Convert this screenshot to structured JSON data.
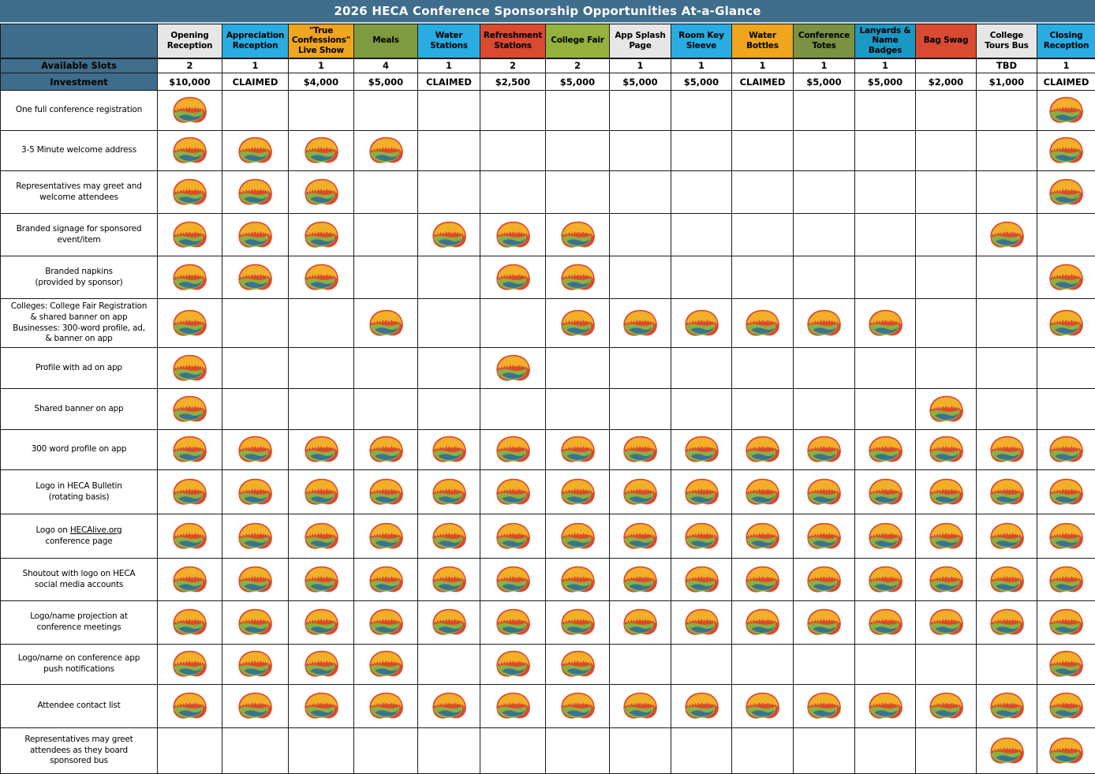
{
  "title": "2026 HECA Conference Sponsorship Opportunities At-a-Glance",
  "colors": {
    "title_bar": "#3F6D8C",
    "header_label_bg": "#3F6D8C",
    "grid_border": "#1a1a1a",
    "gray": "#E6E6E6",
    "cyan": "#29ACE2",
    "amber": "#F0A51E",
    "olive": "#7E9B3F",
    "red": "#D94A31",
    "yellow_green": "#96B23C",
    "dark_olive": "#7A9242",
    "teal": "#1A99C5"
  },
  "icon": {
    "name": "heca-logo-mark",
    "colors": {
      "base": "#DC4A2E",
      "dome": "#F2AF29",
      "swoosh": "#8BB03F",
      "wave": "#3A7391"
    }
  },
  "row_headers": {
    "available_slots": "Available Slots",
    "investment": "Investment"
  },
  "columns": [
    {
      "label": "Opening Reception",
      "color_key": "gray",
      "slots": "2",
      "investment": "$10,000"
    },
    {
      "label": "Appreciation Reception",
      "color_key": "cyan",
      "slots": "1",
      "investment": "CLAIMED"
    },
    {
      "label": "\"True Confessions\" Live Show",
      "color_key": "amber",
      "slots": "1",
      "investment": "$4,000"
    },
    {
      "label": "Meals",
      "color_key": "olive",
      "slots": "4",
      "investment": "$5,000"
    },
    {
      "label": "Water Stations",
      "color_key": "cyan",
      "slots": "1",
      "investment": "CLAIMED"
    },
    {
      "label": "Refreshment Stations",
      "color_key": "red",
      "slots": "2",
      "investment": "$2,500"
    },
    {
      "label": "College Fair",
      "color_key": "yellow_green",
      "slots": "2",
      "investment": "$5,000"
    },
    {
      "label": "App Splash Page",
      "color_key": "gray",
      "slots": "1",
      "investment": "$5,000"
    },
    {
      "label": "Room Key Sleeve",
      "color_key": "cyan",
      "slots": "1",
      "investment": "$5,000"
    },
    {
      "label": "Water Bottles",
      "color_key": "amber",
      "slots": "1",
      "investment": "CLAIMED"
    },
    {
      "label": "Conference Totes",
      "color_key": "dark_olive",
      "slots": "1",
      "investment": "$5,000"
    },
    {
      "label": "Lanyards & Name Badges",
      "color_key": "teal",
      "slots": "1",
      "investment": "$5,000"
    },
    {
      "label": "Bag Swag",
      "color_key": "red",
      "slots": "",
      "investment": "$2,000"
    },
    {
      "label": "College Tours Bus",
      "color_key": "gray",
      "slots": "TBD",
      "investment": "$1,000"
    },
    {
      "label": "Closing Reception",
      "color_key": "cyan",
      "slots": "1",
      "investment": "CLAIMED"
    }
  ],
  "benefits": [
    {
      "label": "One full conference registration",
      "cells": [
        1,
        0,
        0,
        0,
        0,
        0,
        0,
        0,
        0,
        0,
        0,
        0,
        0,
        0,
        1
      ]
    },
    {
      "label": "3-5 Minute welcome address",
      "cells": [
        1,
        1,
        1,
        1,
        0,
        0,
        0,
        0,
        0,
        0,
        0,
        0,
        0,
        0,
        1
      ]
    },
    {
      "label": "Representatives may greet and welcome attendees",
      "lines": [
        "Representatives may greet and",
        "welcome attendees"
      ],
      "cells": [
        1,
        1,
        1,
        0,
        0,
        0,
        0,
        0,
        0,
        0,
        0,
        0,
        0,
        0,
        1
      ]
    },
    {
      "label": "Branded signage for sponsored event/item",
      "lines": [
        "Branded signage for sponsored",
        "event/item"
      ],
      "cells": [
        1,
        1,
        1,
        0,
        1,
        1,
        1,
        0,
        0,
        0,
        0,
        0,
        0,
        1,
        0
      ]
    },
    {
      "label": "Branded napkins (provided by sponsor)",
      "lines": [
        "Branded napkins",
        "(provided by sponsor)"
      ],
      "cells": [
        1,
        1,
        1,
        0,
        0,
        1,
        1,
        0,
        0,
        0,
        0,
        0,
        0,
        0,
        1
      ]
    },
    {
      "label": "Colleges: College Fair Registration & shared banner on app Businesses: 300-word profile, ad, & banner on app",
      "lines": [
        "Colleges: College Fair Registration",
        "& shared banner on app",
        "Businesses: 300-word profile, ad,",
        "& banner on app"
      ],
      "cells": [
        1,
        0,
        0,
        1,
        0,
        0,
        1,
        1,
        1,
        1,
        1,
        1,
        0,
        0,
        1
      ]
    },
    {
      "label": "Profile with ad on app",
      "cells": [
        1,
        0,
        0,
        0,
        0,
        1,
        0,
        0,
        0,
        0,
        0,
        0,
        0,
        0,
        0
      ]
    },
    {
      "label": "Shared banner on app",
      "cells": [
        1,
        0,
        0,
        0,
        0,
        0,
        0,
        0,
        0,
        0,
        0,
        0,
        1,
        0,
        0
      ]
    },
    {
      "label": "300 word profile on app",
      "cells": [
        1,
        1,
        1,
        1,
        1,
        1,
        1,
        1,
        1,
        1,
        1,
        1,
        1,
        1,
        1
      ]
    },
    {
      "label": "Logo in HECA Bulletin (rotating basis)",
      "lines": [
        "Logo in HECA Bulletin",
        "(rotating basis)"
      ],
      "cells": [
        1,
        1,
        1,
        1,
        1,
        1,
        1,
        1,
        1,
        1,
        1,
        1,
        1,
        1,
        1
      ]
    },
    {
      "label": "Logo on HECAlive.org conference page",
      "lines": [
        "Logo on HECAlive.org",
        "conference page"
      ],
      "link_text": "HECAlive.org",
      "cells": [
        1,
        1,
        1,
        1,
        1,
        1,
        1,
        1,
        1,
        1,
        1,
        1,
        1,
        1,
        1
      ]
    },
    {
      "label": "Shoutout with logo on HECA social media accounts",
      "lines": [
        "Shoutout with logo on HECA",
        "social media accounts"
      ],
      "cells": [
        1,
        1,
        1,
        1,
        1,
        1,
        1,
        1,
        1,
        1,
        1,
        1,
        1,
        1,
        1
      ]
    },
    {
      "label": "Logo/name projection at conference meetings",
      "lines": [
        "Logo/name projection at",
        "conference meetings"
      ],
      "cells": [
        1,
        1,
        1,
        1,
        1,
        1,
        1,
        1,
        1,
        1,
        1,
        1,
        1,
        1,
        1
      ]
    },
    {
      "label": "Logo/name on conference app push notifications",
      "lines": [
        "Logo/name on conference app",
        "push notifications"
      ],
      "cells": [
        1,
        1,
        1,
        1,
        0,
        1,
        1,
        0,
        0,
        0,
        0,
        0,
        0,
        0,
        1
      ]
    },
    {
      "label": "Attendee contact list",
      "cells": [
        1,
        1,
        1,
        1,
        1,
        1,
        1,
        1,
        1,
        1,
        1,
        1,
        1,
        1,
        1
      ]
    },
    {
      "label": "Representatives may greet attendees as they board sponsored bus",
      "lines": [
        "Representatives may greet",
        "attendees as they board",
        "sponsored bus"
      ],
      "cells": [
        0,
        0,
        0,
        0,
        0,
        0,
        0,
        0,
        0,
        0,
        0,
        0,
        0,
        1,
        1
      ]
    }
  ]
}
